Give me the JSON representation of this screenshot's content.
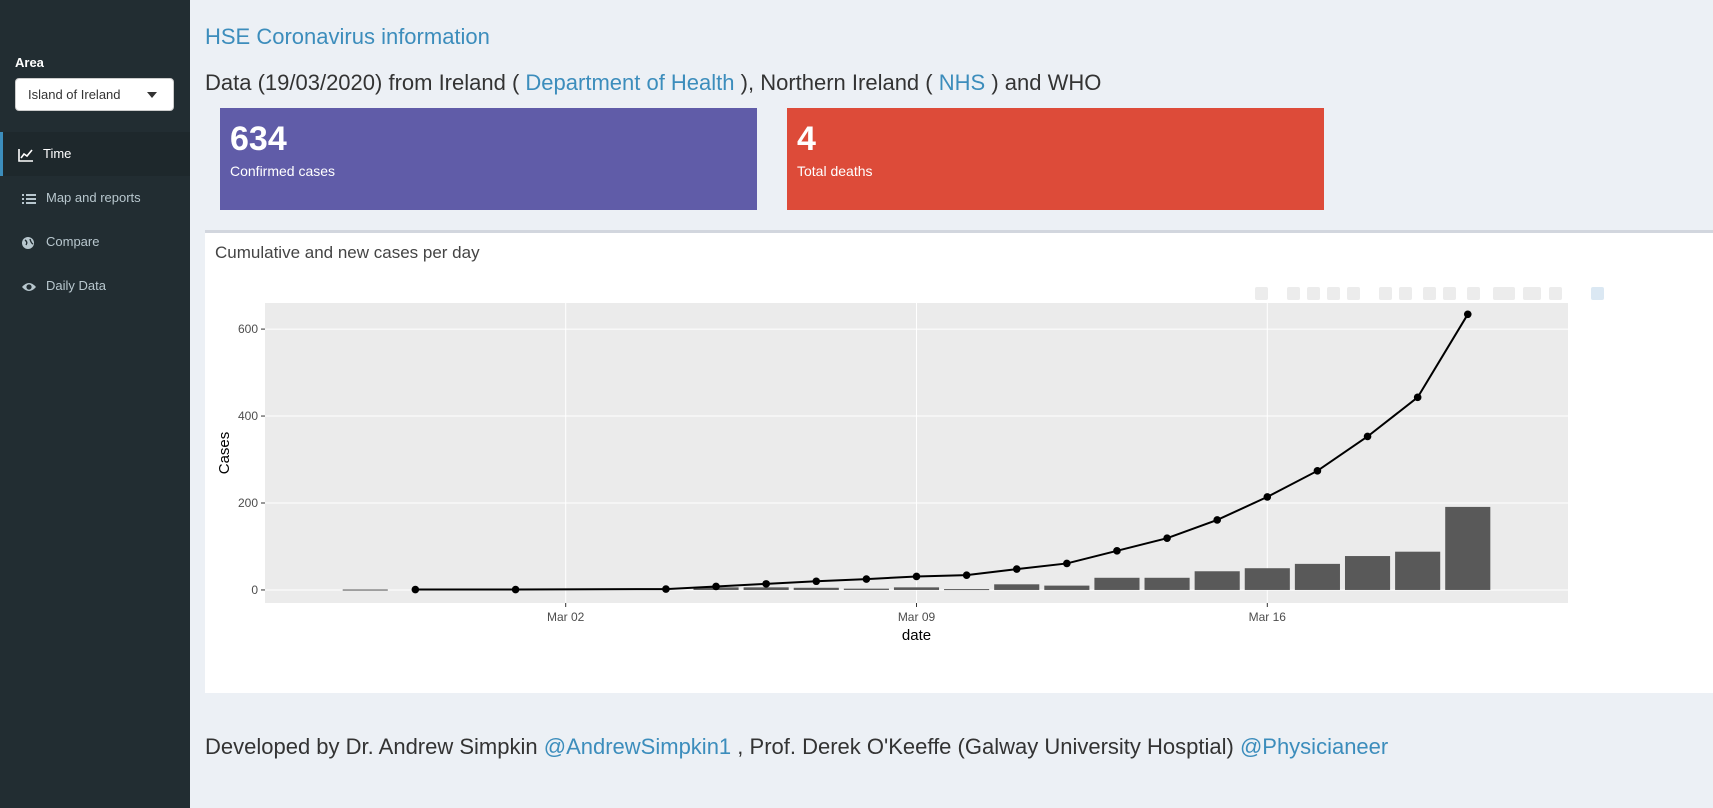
{
  "sidebar": {
    "area_label": "Area",
    "area_value": "Island of Ireland",
    "items": [
      {
        "label": "Time",
        "icon": "line-chart-icon"
      },
      {
        "label": "Map and reports",
        "icon": "list-icon"
      },
      {
        "label": "Compare",
        "icon": "globe-icon"
      },
      {
        "label": "Daily Data",
        "icon": "eye-icon"
      }
    ]
  },
  "header": {
    "title": "HSE Coronavirus information",
    "sub_prefix": "Data (19/03/2020) from Ireland (",
    "sub_link1": "Department of Health",
    "sub_mid": "), Northern Ireland (",
    "sub_link2": "NHS",
    "sub_suffix": ") and WHO"
  },
  "value_boxes": [
    {
      "value": "634",
      "label": "Confirmed cases",
      "color": "#605ca8"
    },
    {
      "value": "4",
      "label": "Total deaths",
      "color": "#dd4b39"
    }
  ],
  "chart_box": {
    "title": "Cumulative and new cases per day"
  },
  "chart_data": {
    "type": "bar+line",
    "xlabel": "date",
    "ylabel": "Cases",
    "x_ticks": [
      "Mar 02",
      "Mar 09",
      "Mar 16"
    ],
    "y_ticks": [
      0,
      200,
      400,
      600
    ],
    "ylim": [
      -30,
      660
    ],
    "grid": true,
    "bars": {
      "name": "new cases",
      "color": "#595959",
      "x": [
        "2020-02-27",
        "2020-03-05",
        "2020-03-06",
        "2020-03-07",
        "2020-03-08",
        "2020-03-09",
        "2020-03-10",
        "2020-03-11",
        "2020-03-12",
        "2020-03-13",
        "2020-03-14",
        "2020-03-15",
        "2020-03-16",
        "2020-03-17",
        "2020-03-18",
        "2020-03-19"
      ],
      "values": [
        1,
        6,
        6,
        5,
        3,
        6,
        2,
        13,
        10,
        28,
        28,
        43,
        50,
        60,
        78,
        88
      ]
    },
    "bar_last": {
      "x": "2020-03-20",
      "value": 191
    },
    "line": {
      "name": "cumulative cases",
      "color": "#000000",
      "x": [
        "2020-02-28",
        "2020-03-01",
        "2020-03-04",
        "2020-03-05",
        "2020-03-06",
        "2020-03-07",
        "2020-03-08",
        "2020-03-09",
        "2020-03-10",
        "2020-03-11",
        "2020-03-12",
        "2020-03-13",
        "2020-03-14",
        "2020-03-15",
        "2020-03-16",
        "2020-03-17",
        "2020-03-18",
        "2020-03-19",
        "2020-03-20"
      ],
      "values": [
        1,
        1,
        2,
        8,
        14,
        20,
        25,
        31,
        34,
        48,
        61,
        90,
        119,
        161,
        214,
        274,
        353,
        443,
        634
      ]
    }
  },
  "footer": {
    "prefix": "Developed by Dr. Andrew Simpkin",
    "link1": "@AndrewSimpkin1",
    "mid": ", Prof. Derek O'Keeffe (Galway University Hosptial)",
    "link2": "@Physicianeer"
  }
}
